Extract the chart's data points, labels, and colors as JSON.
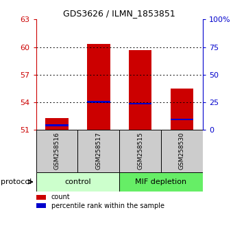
{
  "title": "GDS3626 / ILMN_1853851",
  "samples": [
    "GSM258516",
    "GSM258517",
    "GSM258515",
    "GSM258530"
  ],
  "bar_tops": [
    52.3,
    60.35,
    59.7,
    55.5
  ],
  "bar_base": 51.0,
  "blue_marks": [
    51.5,
    54.05,
    53.85,
    52.15
  ],
  "bar_color": "#CC0000",
  "blue_color": "#0000CC",
  "ylim_left": [
    51,
    63
  ],
  "yticks_left": [
    51,
    54,
    57,
    60,
    63
  ],
  "ylim_right": [
    0,
    100
  ],
  "yticks_right": [
    0,
    25,
    50,
    75,
    100
  ],
  "ytick_labels_right": [
    "0",
    "25",
    "50",
    "75",
    "100%"
  ],
  "groups": [
    {
      "label": "control",
      "start": 0,
      "end": 2,
      "color": "#ccffcc"
    },
    {
      "label": "MIF depletion",
      "start": 2,
      "end": 4,
      "color": "#66ee66"
    }
  ],
  "protocol_label": "protocol",
  "bar_width": 0.55,
  "left_tick_color": "#CC0000",
  "right_tick_color": "#0000CC",
  "sample_box_color": "#cccccc",
  "legend_items": [
    {
      "label": "count",
      "color": "#CC0000"
    },
    {
      "label": "percentile rank within the sample",
      "color": "#0000CC"
    }
  ]
}
